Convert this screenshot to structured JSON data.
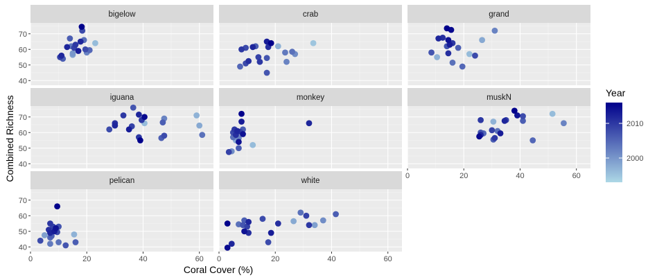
{
  "chart_data": {
    "type": "scatter",
    "facet_by": "Site",
    "xlabel": "Coral Cover (%)",
    "ylabel": "Combined Richness",
    "xlim": [
      0,
      65
    ],
    "ylim": [
      37,
      77
    ],
    "x_ticks": [
      0,
      20,
      40,
      60
    ],
    "y_ticks": [
      40,
      50,
      60,
      70
    ],
    "grid": true,
    "color_by": "Year",
    "color_scale": {
      "low": 1993,
      "high": 2016,
      "low_color": "#add8e6",
      "high_color": "#00008b",
      "ticks": [
        2000,
        2010
      ]
    },
    "legend": {
      "title": "Year",
      "position": "right"
    },
    "facets": [
      {
        "name": "bigelow",
        "points": [
          {
            "x": 18.2,
            "y": 74.5,
            "year": 2016
          },
          {
            "x": 18.4,
            "y": 72,
            "year": 2008
          },
          {
            "x": 14,
            "y": 67,
            "year": 2006
          },
          {
            "x": 19,
            "y": 66,
            "year": 2004
          },
          {
            "x": 17.8,
            "y": 65,
            "year": 2012
          },
          {
            "x": 16,
            "y": 63,
            "year": 2010
          },
          {
            "x": 23,
            "y": 64,
            "year": 1996
          },
          {
            "x": 13,
            "y": 61.5,
            "year": 2012
          },
          {
            "x": 15.5,
            "y": 61,
            "year": 2009
          },
          {
            "x": 14.5,
            "y": 62,
            "year": 2003
          },
          {
            "x": 21,
            "y": 59.5,
            "year": 2005
          },
          {
            "x": 17,
            "y": 59,
            "year": 2013
          },
          {
            "x": 20,
            "y": 58,
            "year": 2002
          },
          {
            "x": 15,
            "y": 57.5,
            "year": 2000
          },
          {
            "x": 19.5,
            "y": 60,
            "year": 2008
          },
          {
            "x": 11,
            "y": 56,
            "year": 2012
          },
          {
            "x": 10.5,
            "y": 55,
            "year": 2009
          },
          {
            "x": 11.5,
            "y": 54,
            "year": 2006
          },
          {
            "x": 15,
            "y": 56.5,
            "year": 1999
          }
        ]
      },
      {
        "name": "crab",
        "points": [
          {
            "x": 17,
            "y": 65,
            "year": 2013
          },
          {
            "x": 18.5,
            "y": 64,
            "year": 2016
          },
          {
            "x": 17.5,
            "y": 61.5,
            "year": 2011
          },
          {
            "x": 21,
            "y": 62,
            "year": 1997
          },
          {
            "x": 33.5,
            "y": 64,
            "year": 1995
          },
          {
            "x": 8,
            "y": 60,
            "year": 2010
          },
          {
            "x": 9.5,
            "y": 61,
            "year": 2008
          },
          {
            "x": 12,
            "y": 61.5,
            "year": 2012
          },
          {
            "x": 13,
            "y": 62,
            "year": 2006
          },
          {
            "x": 23.5,
            "y": 58,
            "year": 2003
          },
          {
            "x": 27,
            "y": 57,
            "year": 2001
          },
          {
            "x": 26,
            "y": 58.5,
            "year": 2004
          },
          {
            "x": 14,
            "y": 55,
            "year": 2009
          },
          {
            "x": 17,
            "y": 54.5,
            "year": 2007
          },
          {
            "x": 14.5,
            "y": 52,
            "year": 2010
          },
          {
            "x": 10.5,
            "y": 52.5,
            "year": 2011
          },
          {
            "x": 9.5,
            "y": 51,
            "year": 2008
          },
          {
            "x": 7.5,
            "y": 49,
            "year": 2005
          },
          {
            "x": 24,
            "y": 52,
            "year": 2002
          },
          {
            "x": 17,
            "y": 45,
            "year": 2007
          }
        ]
      },
      {
        "name": "grand",
        "points": [
          {
            "x": 14,
            "y": 73.5,
            "year": 2016
          },
          {
            "x": 15.5,
            "y": 72.5,
            "year": 2015
          },
          {
            "x": 31,
            "y": 72,
            "year": 2002
          },
          {
            "x": 11,
            "y": 67,
            "year": 2012
          },
          {
            "x": 12.5,
            "y": 67.5,
            "year": 2011
          },
          {
            "x": 14.5,
            "y": 66,
            "year": 2014
          },
          {
            "x": 26.5,
            "y": 66,
            "year": 1998
          },
          {
            "x": 15,
            "y": 63,
            "year": 2013
          },
          {
            "x": 16,
            "y": 64,
            "year": 2010
          },
          {
            "x": 14,
            "y": 62,
            "year": 2007
          },
          {
            "x": 18,
            "y": 61,
            "year": 2006
          },
          {
            "x": 8.5,
            "y": 58,
            "year": 2007
          },
          {
            "x": 14.5,
            "y": 57.5,
            "year": 2011
          },
          {
            "x": 22,
            "y": 57,
            "year": 1996
          },
          {
            "x": 24,
            "y": 56,
            "year": 2008
          },
          {
            "x": 10.5,
            "y": 55,
            "year": 1997
          },
          {
            "x": 16,
            "y": 51.5,
            "year": 2004
          },
          {
            "x": 19.5,
            "y": 49,
            "year": 2005
          }
        ]
      },
      {
        "name": "iguana",
        "points": [
          {
            "x": 36.5,
            "y": 76,
            "year": 2007
          },
          {
            "x": 33,
            "y": 71,
            "year": 2010
          },
          {
            "x": 38.5,
            "y": 71.5,
            "year": 2012
          },
          {
            "x": 59,
            "y": 71,
            "year": 1997
          },
          {
            "x": 40.5,
            "y": 70,
            "year": 2015
          },
          {
            "x": 47.5,
            "y": 69,
            "year": 2002
          },
          {
            "x": 39.5,
            "y": 68,
            "year": 2010
          },
          {
            "x": 40.5,
            "y": 66,
            "year": 1996
          },
          {
            "x": 30,
            "y": 66,
            "year": 2011
          },
          {
            "x": 36,
            "y": 64,
            "year": 2009
          },
          {
            "x": 30,
            "y": 64.5,
            "year": 2012
          },
          {
            "x": 47,
            "y": 66.5,
            "year": 2006
          },
          {
            "x": 60,
            "y": 64.5,
            "year": 1998
          },
          {
            "x": 28,
            "y": 62,
            "year": 2008
          },
          {
            "x": 35,
            "y": 62,
            "year": 2013
          },
          {
            "x": 38.5,
            "y": 57,
            "year": 2010
          },
          {
            "x": 46.5,
            "y": 56.5,
            "year": 2006
          },
          {
            "x": 47.5,
            "y": 58,
            "year": 2008
          },
          {
            "x": 39,
            "y": 55,
            "year": 2016
          },
          {
            "x": 61,
            "y": 58.5,
            "year": 2004
          }
        ]
      },
      {
        "name": "monkey",
        "points": [
          {
            "x": 8,
            "y": 72,
            "year": 2016
          },
          {
            "x": 8,
            "y": 67,
            "year": 2013
          },
          {
            "x": 32,
            "y": 66,
            "year": 2012
          },
          {
            "x": 5.5,
            "y": 62,
            "year": 2010
          },
          {
            "x": 6.5,
            "y": 61,
            "year": 2012
          },
          {
            "x": 8.5,
            "y": 62,
            "year": 2006
          },
          {
            "x": 5,
            "y": 60,
            "year": 2008
          },
          {
            "x": 7.5,
            "y": 60.5,
            "year": 2009
          },
          {
            "x": 6,
            "y": 58.5,
            "year": 2011
          },
          {
            "x": 8.5,
            "y": 59,
            "year": 2014
          },
          {
            "x": 5,
            "y": 57,
            "year": 2004
          },
          {
            "x": 7,
            "y": 56.5,
            "year": 2002
          },
          {
            "x": 6,
            "y": 55,
            "year": 1998
          },
          {
            "x": 7,
            "y": 54,
            "year": 2014
          },
          {
            "x": 12,
            "y": 52,
            "year": 1996
          },
          {
            "x": 7,
            "y": 50,
            "year": 2006
          },
          {
            "x": 3.5,
            "y": 47.5,
            "year": 2009
          },
          {
            "x": 4.5,
            "y": 48,
            "year": 2001
          }
        ]
      },
      {
        "name": "muskN",
        "points": [
          {
            "x": 38,
            "y": 74,
            "year": 2016
          },
          {
            "x": 39,
            "y": 71,
            "year": 2014
          },
          {
            "x": 51.5,
            "y": 72,
            "year": 1996
          },
          {
            "x": 41,
            "y": 70.5,
            "year": 2008
          },
          {
            "x": 26,
            "y": 68,
            "year": 2010
          },
          {
            "x": 30.5,
            "y": 67,
            "year": 1997
          },
          {
            "x": 34.5,
            "y": 67.5,
            "year": 2012
          },
          {
            "x": 35,
            "y": 68,
            "year": 2009
          },
          {
            "x": 41,
            "y": 67.5,
            "year": 2006
          },
          {
            "x": 55.5,
            "y": 66,
            "year": 2002
          },
          {
            "x": 32,
            "y": 61,
            "year": 2004
          },
          {
            "x": 33,
            "y": 59.5,
            "year": 2013
          },
          {
            "x": 30,
            "y": 61.5,
            "year": 2009
          },
          {
            "x": 26,
            "y": 60,
            "year": 2007
          },
          {
            "x": 27,
            "y": 59.5,
            "year": 2005
          },
          {
            "x": 26,
            "y": 58.5,
            "year": 2012
          },
          {
            "x": 25.5,
            "y": 57.5,
            "year": 2015
          },
          {
            "x": 31,
            "y": 56.5,
            "year": 2010
          },
          {
            "x": 30.5,
            "y": 55.5,
            "year": 2006
          },
          {
            "x": 44.5,
            "y": 55,
            "year": 2005
          }
        ]
      },
      {
        "name": "pelican",
        "points": [
          {
            "x": 9.5,
            "y": 66,
            "year": 2016
          },
          {
            "x": 7,
            "y": 55,
            "year": 2010
          },
          {
            "x": 8,
            "y": 53,
            "year": 2009
          },
          {
            "x": 10,
            "y": 53,
            "year": 2007
          },
          {
            "x": 6.5,
            "y": 51,
            "year": 2011
          },
          {
            "x": 9,
            "y": 52,
            "year": 2014
          },
          {
            "x": 7,
            "y": 49,
            "year": 2012
          },
          {
            "x": 8.5,
            "y": 50,
            "year": 2013
          },
          {
            "x": 9.5,
            "y": 49.5,
            "year": 2008
          },
          {
            "x": 15.5,
            "y": 48,
            "year": 1997
          },
          {
            "x": 7.5,
            "y": 47,
            "year": 2006
          },
          {
            "x": 5,
            "y": 47.5,
            "year": 1999
          },
          {
            "x": 7,
            "y": 46,
            "year": 2005
          },
          {
            "x": 3.5,
            "y": 44,
            "year": 2008
          },
          {
            "x": 10,
            "y": 43,
            "year": 2004
          },
          {
            "x": 16,
            "y": 43,
            "year": 2006
          },
          {
            "x": 7,
            "y": 42,
            "year": 2003
          },
          {
            "x": 12.5,
            "y": 41,
            "year": 2007
          }
        ]
      },
      {
        "name": "white",
        "points": [
          {
            "x": 29,
            "y": 62,
            "year": 2004
          },
          {
            "x": 41.5,
            "y": 61,
            "year": 2006
          },
          {
            "x": 31,
            "y": 60,
            "year": 2009
          },
          {
            "x": 15.5,
            "y": 58,
            "year": 2008
          },
          {
            "x": 26.5,
            "y": 56.5,
            "year": 1998
          },
          {
            "x": 37,
            "y": 57,
            "year": 2001
          },
          {
            "x": 9,
            "y": 57,
            "year": 2006
          },
          {
            "x": 10.5,
            "y": 56,
            "year": 2012
          },
          {
            "x": 3,
            "y": 55,
            "year": 2016
          },
          {
            "x": 21,
            "y": 55,
            "year": 2011
          },
          {
            "x": 32,
            "y": 54,
            "year": 2010
          },
          {
            "x": 34,
            "y": 54,
            "year": 1999
          },
          {
            "x": 8.5,
            "y": 54,
            "year": 2007
          },
          {
            "x": 7,
            "y": 54.5,
            "year": 2004
          },
          {
            "x": 10,
            "y": 53,
            "year": 2009
          },
          {
            "x": 9,
            "y": 50,
            "year": 2014
          },
          {
            "x": 10.5,
            "y": 49,
            "year": 2011
          },
          {
            "x": 18.5,
            "y": 49,
            "year": 2013
          },
          {
            "x": 17.5,
            "y": 43,
            "year": 2008
          },
          {
            "x": 4.5,
            "y": 42,
            "year": 2012
          },
          {
            "x": 3,
            "y": 39.5,
            "year": 2015
          }
        ]
      }
    ]
  }
}
